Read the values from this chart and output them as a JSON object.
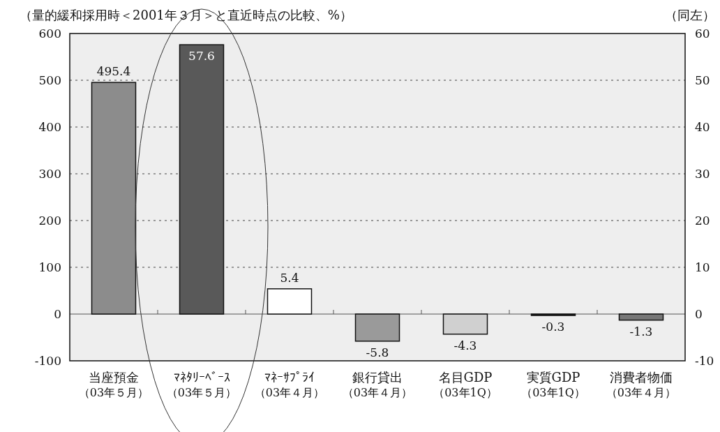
{
  "chart_data": {
    "type": "bar",
    "title": "（量的緩和採用時＜2001年３月＞と直近時点の比較、%）",
    "y2label": "（同左）",
    "categories": [
      "当座預金（03年５月）",
      "ﾏﾈﾀﾘｰﾍﾞｰｽ（03年５月）",
      "ﾏﾈｰｻﾌﾟﾗｲ（03年４月）",
      "銀行貸出（03年４月）",
      "名目GDP（03年1Q）",
      "実質GDP（03年1Q）",
      "消費者物価（03年４月）"
    ],
    "series": [
      {
        "axis": "y",
        "colors": [
          "#8c8c8c",
          null,
          null,
          null,
          null,
          null,
          null
        ],
        "values": [
          495.4,
          null,
          null,
          null,
          null,
          null,
          null
        ]
      },
      {
        "axis": "y2",
        "colors": [
          null,
          "#595959",
          "#ffffff",
          "#9a9a9a",
          "#d0d0d0",
          "#111111",
          "#777777"
        ],
        "values": [
          null,
          57.6,
          5.4,
          -5.8,
          -4.3,
          -0.3,
          -1.3
        ]
      }
    ],
    "ylim": [
      -100,
      600
    ],
    "yticks": [
      -100,
      0,
      100,
      200,
      300,
      400,
      500,
      600
    ],
    "y2lim": [
      -10,
      60
    ],
    "y2ticks": [
      -10,
      0,
      10,
      20,
      30,
      40,
      50,
      60
    ],
    "grid": "y",
    "data_labels": true
  }
}
